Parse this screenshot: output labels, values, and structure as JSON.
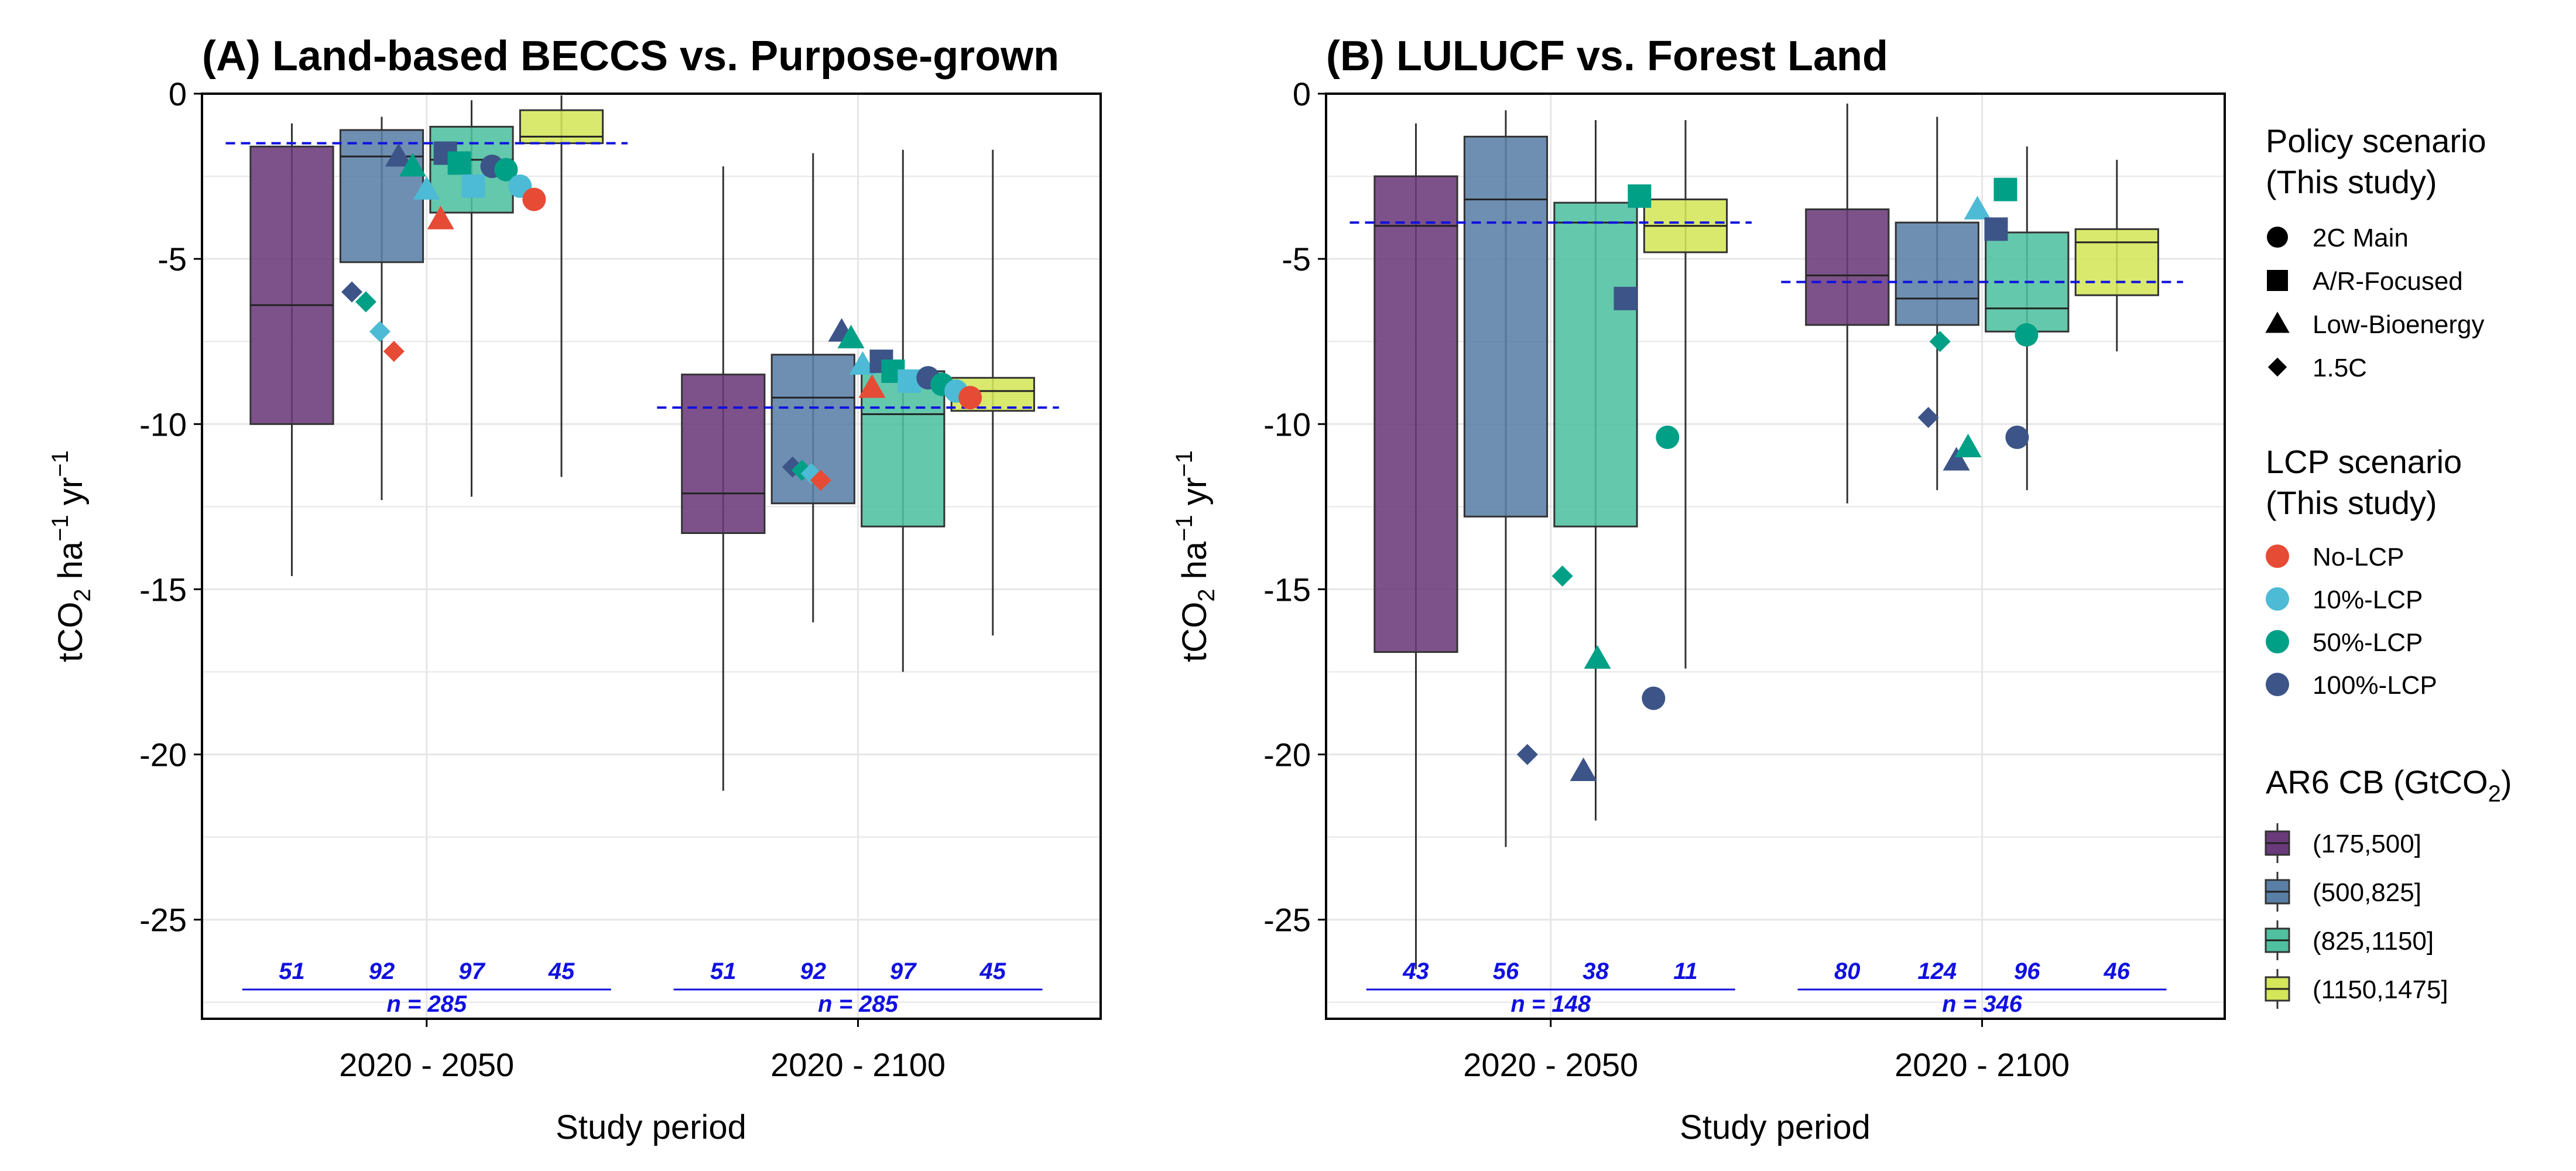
{
  "chart_data": [
    {
      "type": "box",
      "title": "(A) Land-based BECCS vs. Purpose-grown",
      "xlabel": "Study period",
      "ylabel_text": "tCO",
      "ylabel_sub": "2",
      "ylabel_mid": " ha",
      "ylabel_sup1": "−1",
      "ylabel_end": " yr",
      "ylabel_sup2": "−1",
      "categories": [
        "2020 - 2050",
        "2020 - 2100"
      ],
      "ylim": [
        -28,
        0
      ],
      "yticks": [
        0,
        -5,
        -10,
        -15,
        -20,
        -25
      ],
      "grid": true,
      "groups": [
        {
          "period": "2020 - 2050",
          "median_line": -1.5,
          "n_total": "n = 285",
          "boxes": [
            {
              "bin": "(175,500]",
              "n": "51",
              "whisker_low": -14.6,
              "q1": -10.0,
              "median": -6.4,
              "q3": -1.6,
              "whisker_high": -0.9
            },
            {
              "bin": "(500,825]",
              "n": "92",
              "whisker_low": -12.3,
              "q1": -5.1,
              "median": -1.9,
              "q3": -1.1,
              "whisker_high": -0.7
            },
            {
              "bin": "(825,1150]",
              "n": "97",
              "whisker_low": -12.2,
              "q1": -3.6,
              "median": -2.0,
              "q3": -1.0,
              "whisker_high": -0.2
            },
            {
              "bin": "(1150,1475]",
              "n": "45",
              "whisker_low": -11.6,
              "q1": -1.5,
              "median": -1.3,
              "q3": -0.5,
              "whisker_high": -0.05
            }
          ],
          "points": [
            {
              "policy": "1.5C",
              "lcp": "100%-LCP",
              "offset": -0.32,
              "y": -6.0
            },
            {
              "policy": "1.5C",
              "lcp": "50%-LCP",
              "offset": -0.26,
              "y": -6.3
            },
            {
              "policy": "1.5C",
              "lcp": "10%-LCP",
              "offset": -0.2,
              "y": -7.2
            },
            {
              "policy": "1.5C",
              "lcp": "No-LCP",
              "offset": -0.14,
              "y": -7.8
            },
            {
              "policy": "Low-Bioenergy",
              "lcp": "100%-LCP",
              "offset": -0.12,
              "y": -1.9
            },
            {
              "policy": "Low-Bioenergy",
              "lcp": "50%-LCP",
              "offset": -0.06,
              "y": -2.2
            },
            {
              "policy": "Low-Bioenergy",
              "lcp": "10%-LCP",
              "offset": 0.0,
              "y": -2.9
            },
            {
              "policy": "Low-Bioenergy",
              "lcp": "No-LCP",
              "offset": 0.06,
              "y": -3.8
            },
            {
              "policy": "A/R-Focused",
              "lcp": "100%-LCP",
              "offset": 0.08,
              "y": -1.8
            },
            {
              "policy": "A/R-Focused",
              "lcp": "50%-LCP",
              "offset": 0.14,
              "y": -2.1
            },
            {
              "policy": "A/R-Focused",
              "lcp": "10%-LCP",
              "offset": 0.2,
              "y": -2.8
            },
            {
              "policy": "2C Main",
              "lcp": "100%-LCP",
              "offset": 0.28,
              "y": -2.2
            },
            {
              "policy": "2C Main",
              "lcp": "50%-LCP",
              "offset": 0.34,
              "y": -2.3
            },
            {
              "policy": "2C Main",
              "lcp": "10%-LCP",
              "offset": 0.4,
              "y": -2.8
            },
            {
              "policy": "2C Main",
              "lcp": "No-LCP",
              "offset": 0.46,
              "y": -3.2
            }
          ]
        },
        {
          "period": "2020 - 2100",
          "median_line": -9.5,
          "n_total": "n = 285",
          "boxes": [
            {
              "bin": "(175,500]",
              "n": "51",
              "whisker_low": -21.1,
              "q1": -13.3,
              "median": -12.1,
              "q3": -8.5,
              "whisker_high": -2.2
            },
            {
              "bin": "(500,825]",
              "n": "92",
              "whisker_low": -16.0,
              "q1": -12.4,
              "median": -9.2,
              "q3": -7.9,
              "whisker_high": -1.8
            },
            {
              "bin": "(825,1150]",
              "n": "97",
              "whisker_low": -17.5,
              "q1": -13.1,
              "median": -9.7,
              "q3": -8.4,
              "whisker_high": -1.7
            },
            {
              "bin": "(1150,1475]",
              "n": "45",
              "whisker_low": -16.4,
              "q1": -9.6,
              "median": -9.0,
              "q3": -8.6,
              "whisker_high": -1.7
            }
          ],
          "points": [
            {
              "policy": "1.5C",
              "lcp": "100%-LCP",
              "offset": -0.28,
              "y": -11.3
            },
            {
              "policy": "1.5C",
              "lcp": "50%-LCP",
              "offset": -0.24,
              "y": -11.4
            },
            {
              "policy": "1.5C",
              "lcp": "10%-LCP",
              "offset": -0.2,
              "y": -11.5
            },
            {
              "policy": "1.5C",
              "lcp": "No-LCP",
              "offset": -0.16,
              "y": -11.7
            },
            {
              "policy": "Low-Bioenergy",
              "lcp": "100%-LCP",
              "offset": -0.07,
              "y": -7.2
            },
            {
              "policy": "Low-Bioenergy",
              "lcp": "50%-LCP",
              "offset": -0.03,
              "y": -7.4
            },
            {
              "policy": "Low-Bioenergy",
              "lcp": "10%-LCP",
              "offset": 0.02,
              "y": -8.2
            },
            {
              "policy": "Low-Bioenergy",
              "lcp": "No-LCP",
              "offset": 0.06,
              "y": -8.9
            },
            {
              "policy": "A/R-Focused",
              "lcp": "100%-LCP",
              "offset": 0.1,
              "y": -8.1
            },
            {
              "policy": "A/R-Focused",
              "lcp": "50%-LCP",
              "offset": 0.15,
              "y": -8.4
            },
            {
              "policy": "A/R-Focused",
              "lcp": "10%-LCP",
              "offset": 0.22,
              "y": -8.7
            },
            {
              "policy": "2C Main",
              "lcp": "100%-LCP",
              "offset": 0.3,
              "y": -8.6
            },
            {
              "policy": "2C Main",
              "lcp": "50%-LCP",
              "offset": 0.36,
              "y": -8.8
            },
            {
              "policy": "2C Main",
              "lcp": "10%-LCP",
              "offset": 0.42,
              "y": -9.0
            },
            {
              "policy": "2C Main",
              "lcp": "No-LCP",
              "offset": 0.48,
              "y": -9.2
            }
          ]
        }
      ]
    },
    {
      "type": "box",
      "title": "(B) LULUCF vs. Forest Land",
      "xlabel": "Study period",
      "ylabel_text": "tCO",
      "ylabel_sub": "2",
      "ylabel_mid": " ha",
      "ylabel_sup1": "−1",
      "ylabel_end": " yr",
      "ylabel_sup2": "−1",
      "categories": [
        "2020 - 2050",
        "2020 - 2100"
      ],
      "ylim": [
        -28,
        0
      ],
      "yticks": [
        0,
        -5,
        -10,
        -15,
        -20,
        -25
      ],
      "grid": true,
      "groups": [
        {
          "period": "2020 - 2050",
          "median_line": -3.9,
          "n_total": "n = 148",
          "boxes": [
            {
              "bin": "(175,500]",
              "n": "43",
              "whisker_low": -26.5,
              "q1": -16.9,
              "median": -4.0,
              "q3": -2.5,
              "whisker_high": -0.9
            },
            {
              "bin": "(500,825]",
              "n": "56",
              "whisker_low": -22.8,
              "q1": -12.8,
              "median": -3.2,
              "q3": -1.3,
              "whisker_high": -0.5
            },
            {
              "bin": "(825,1150]",
              "n": "38",
              "whisker_low": -22.0,
              "q1": -13.1,
              "median": -3.9,
              "q3": -3.3,
              "whisker_high": -0.8
            },
            {
              "bin": "(1150,1475]",
              "n": "11",
              "whisker_low": -17.4,
              "q1": -4.8,
              "median": -4.0,
              "q3": -3.2,
              "whisker_high": -0.8
            }
          ],
          "points": [
            {
              "policy": "1.5C",
              "lcp": "100%-LCP",
              "offset": -0.1,
              "y": -20.0
            },
            {
              "policy": "1.5C",
              "lcp": "50%-LCP",
              "offset": 0.05,
              "y": -14.6
            },
            {
              "policy": "Low-Bioenergy",
              "lcp": "100%-LCP",
              "offset": 0.14,
              "y": -20.5
            },
            {
              "policy": "Low-Bioenergy",
              "lcp": "50%-LCP",
              "offset": 0.2,
              "y": -17.1
            },
            {
              "policy": "A/R-Focused",
              "lcp": "100%-LCP",
              "offset": 0.32,
              "y": -6.2
            },
            {
              "policy": "A/R-Focused",
              "lcp": "50%-LCP",
              "offset": 0.38,
              "y": -3.1
            },
            {
              "policy": "2C Main",
              "lcp": "50%-LCP",
              "offset": 0.5,
              "y": -10.4
            },
            {
              "policy": "2C Main",
              "lcp": "100%-LCP",
              "offset": 0.44,
              "y": -18.3
            }
          ]
        },
        {
          "period": "2020 - 2100",
          "median_line": -5.7,
          "n_total": "n = 346",
          "boxes": [
            {
              "bin": "(175,500]",
              "n": "80",
              "whisker_low": -12.4,
              "q1": -7.0,
              "median": -5.5,
              "q3": -3.5,
              "whisker_high": -0.3
            },
            {
              "bin": "(500,825]",
              "n": "124",
              "whisker_low": -12.0,
              "q1": -7.0,
              "median": -6.2,
              "q3": -3.9,
              "whisker_high": -0.7
            },
            {
              "bin": "(825,1150]",
              "n": "96",
              "whisker_low": -12.0,
              "q1": -7.2,
              "median": -6.5,
              "q3": -4.2,
              "whisker_high": -1.6
            },
            {
              "bin": "(1150,1475]",
              "n": "46",
              "whisker_low": -7.8,
              "q1": -6.1,
              "median": -4.5,
              "q3": -4.1,
              "whisker_high": -2.0
            }
          ],
          "points": [
            {
              "policy": "1.5C",
              "lcp": "100%-LCP",
              "offset": -0.23,
              "y": -9.8
            },
            {
              "policy": "1.5C",
              "lcp": "50%-LCP",
              "offset": -0.18,
              "y": -7.5
            },
            {
              "policy": "Low-Bioenergy",
              "lcp": "100%-LCP",
              "offset": -0.11,
              "y": -11.1
            },
            {
              "policy": "Low-Bioenergy",
              "lcp": "50%-LCP",
              "offset": -0.06,
              "y": -10.7
            },
            {
              "policy": "Low-Bioenergy",
              "lcp": "10%-LCP",
              "offset": -0.02,
              "y": -3.5
            },
            {
              "policy": "A/R-Focused",
              "lcp": "100%-LCP",
              "offset": 0.06,
              "y": -4.1
            },
            {
              "policy": "A/R-Focused",
              "lcp": "50%-LCP",
              "offset": 0.1,
              "y": -2.9
            },
            {
              "policy": "2C Main",
              "lcp": "50%-LCP",
              "offset": 0.19,
              "y": -7.3
            },
            {
              "policy": "2C Main",
              "lcp": "100%-LCP",
              "offset": 0.15,
              "y": -10.4
            }
          ]
        }
      ]
    }
  ],
  "legend": {
    "placement": "right",
    "policy_title_1": "Policy scenario",
    "policy_title_2": "(This study)",
    "policy_items": [
      {
        "label": "2C Main",
        "shape": "circle"
      },
      {
        "label": "A/R-Focused",
        "shape": "square"
      },
      {
        "label": "Low-Bioenergy",
        "shape": "triangle"
      },
      {
        "label": "1.5C",
        "shape": "diamond"
      }
    ],
    "lcp_title_1": "LCP scenario",
    "lcp_title_2": "(This study)",
    "lcp_items": [
      {
        "label": "No-LCP",
        "color": "#e64b35"
      },
      {
        "label": "10%-LCP",
        "color": "#4dbbd5"
      },
      {
        "label": "50%-LCP",
        "color": "#00a087"
      },
      {
        "label": "100%-LCP",
        "color": "#3c5488"
      }
    ],
    "cb_title_text": "AR6 CB (GtCO",
    "cb_title_sub": "2",
    "cb_title_end": ")",
    "cb_items": [
      {
        "label": "(175,500]",
        "color": "#6b3a7a"
      },
      {
        "label": "(500,825]",
        "color": "#5a7fa6"
      },
      {
        "label": "(825,1150]",
        "color": "#4fc0a0"
      },
      {
        "label": "(1150,1475]",
        "color": "#d4e65a"
      }
    ]
  },
  "colors": {
    "ref_line": "#1010e0",
    "grid": "#e6e6e6",
    "box_outline": "#333333"
  }
}
